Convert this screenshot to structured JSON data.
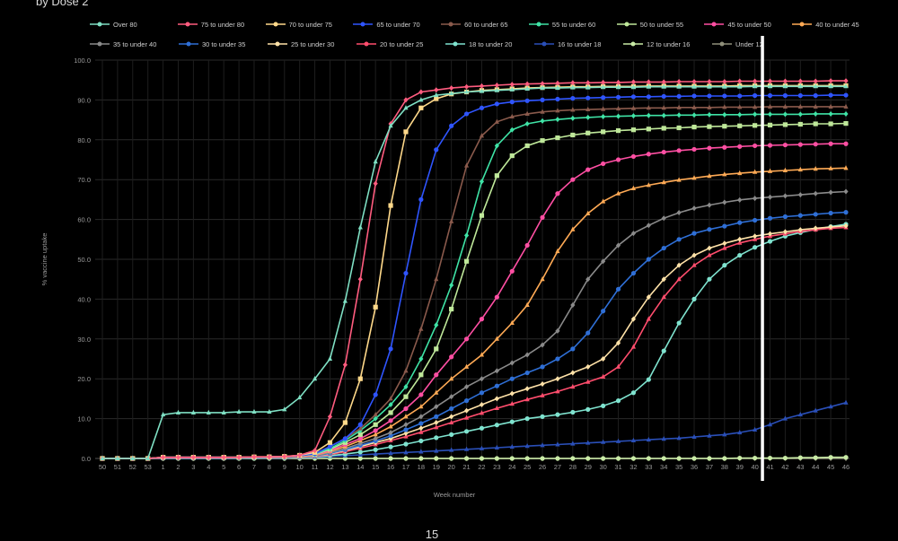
{
  "header": {
    "partial_text": "by Dose 2"
  },
  "page_number": "15",
  "chart_data": {
    "type": "line",
    "xlabel": "Week number",
    "ylabel": "% vaccine uptake",
    "ylim": [
      0,
      100
    ],
    "yticks": [
      "0.0",
      "10.0",
      "20.0",
      "30.0",
      "40.0",
      "50.0",
      "60.0",
      "70.0",
      "80.0",
      "90.0",
      "100.0"
    ],
    "categories": [
      "50",
      "51",
      "52",
      "53",
      "1",
      "2",
      "3",
      "4",
      "5",
      "6",
      "7",
      "8",
      "9",
      "10",
      "11",
      "12",
      "13",
      "14",
      "15",
      "16",
      "17",
      "18",
      "19",
      "20",
      "21",
      "22",
      "23",
      "24",
      "25",
      "26",
      "27",
      "28",
      "29",
      "30",
      "31",
      "32",
      "33",
      "34",
      "35",
      "36",
      "37",
      "38",
      "39",
      "40",
      "41",
      "42",
      "43",
      "44",
      "45",
      "46"
    ],
    "grid": true,
    "legend_position": "top",
    "vertical_marker_after": "40",
    "series": [
      {
        "name": "Over 80",
        "color": "#7fe0c4",
        "marker": "triangle",
        "values": [
          0,
          0,
          0,
          0,
          11,
          11.5,
          11.5,
          11.5,
          11.5,
          11.7,
          11.7,
          11.7,
          12.3,
          15.3,
          20,
          25,
          39.5,
          58,
          74.5,
          83.5,
          88,
          90,
          91.2,
          91.6,
          92,
          92.2,
          92.4,
          92.6,
          92.8,
          93,
          93,
          93.1,
          93.1,
          93.2,
          93.2,
          93.2,
          93.3,
          93.3,
          93.3,
          93.3,
          93.3,
          93.3,
          93.3,
          93.4,
          93.4,
          93.4,
          93.4,
          93.4,
          93.4,
          93.4
        ]
      },
      {
        "name": "75 to under 80",
        "color": "#ff5c7f",
        "marker": "diamond",
        "values": [
          0,
          0,
          0,
          0,
          0.3,
          0.3,
          0.3,
          0.3,
          0.3,
          0.3,
          0.4,
          0.4,
          0.5,
          0.8,
          2,
          10.5,
          23.5,
          45,
          69,
          84,
          90,
          92,
          92.5,
          93,
          93.3,
          93.5,
          93.7,
          93.9,
          94,
          94.1,
          94.2,
          94.3,
          94.3,
          94.4,
          94.4,
          94.5,
          94.5,
          94.5,
          94.6,
          94.6,
          94.6,
          94.6,
          94.7,
          94.7,
          94.7,
          94.7,
          94.7,
          94.7,
          94.8,
          94.8
        ]
      },
      {
        "name": "70 to under 75",
        "color": "#ffd98a",
        "marker": "square",
        "values": [
          0,
          0,
          0,
          0,
          0.3,
          0.3,
          0.3,
          0.3,
          0.3,
          0.3,
          0.4,
          0.4,
          0.5,
          0.8,
          1.5,
          4,
          9,
          20,
          38,
          63.5,
          82,
          88,
          90.3,
          91.5,
          92,
          92.4,
          92.6,
          92.8,
          93,
          93.1,
          93.2,
          93.3,
          93.3,
          93.4,
          93.4,
          93.4,
          93.5,
          93.5,
          93.5,
          93.5,
          93.5,
          93.5,
          93.6,
          93.6,
          93.6,
          93.6,
          93.6,
          93.6,
          93.6,
          93.6
        ]
      },
      {
        "name": "65 to under 70",
        "color": "#2f55ff",
        "marker": "circle",
        "values": [
          0,
          0,
          0,
          0,
          0.3,
          0.3,
          0.3,
          0.3,
          0.3,
          0.3,
          0.3,
          0.4,
          0.5,
          0.7,
          1.2,
          3,
          5,
          8.5,
          16,
          27.5,
          46.5,
          65,
          77.5,
          83.5,
          86.5,
          88,
          89,
          89.5,
          89.8,
          90,
          90.2,
          90.4,
          90.5,
          90.6,
          90.7,
          90.8,
          90.8,
          90.9,
          90.9,
          91,
          91,
          91,
          91,
          91.1,
          91.1,
          91.1,
          91.1,
          91.1,
          91.2,
          91.2
        ]
      },
      {
        "name": "60 to under 65",
        "color": "#8a5a4c",
        "marker": "triangle",
        "values": [
          0,
          0,
          0,
          0,
          0.3,
          0.3,
          0.3,
          0.3,
          0.3,
          0.3,
          0.3,
          0.4,
          0.5,
          0.7,
          1.2,
          3,
          5,
          7.5,
          11,
          15,
          22,
          32.5,
          45,
          59.5,
          73.5,
          81,
          84.5,
          85.8,
          86.5,
          87,
          87.3,
          87.5,
          87.6,
          87.7,
          87.8,
          87.9,
          88,
          88,
          88.1,
          88.1,
          88.1,
          88.2,
          88.2,
          88.2,
          88.3,
          88.3,
          88.3,
          88.3,
          88.3,
          88.3
        ]
      },
      {
        "name": "55 to under 60",
        "color": "#3fe3a6",
        "marker": "diamond",
        "values": [
          0,
          0,
          0,
          0,
          0.3,
          0.3,
          0.3,
          0.3,
          0.3,
          0.3,
          0.3,
          0.4,
          0.5,
          0.7,
          1.1,
          2.5,
          4.5,
          7,
          10,
          13.5,
          18,
          25,
          33.5,
          43.5,
          56,
          69.5,
          78.5,
          82.5,
          84,
          84.7,
          85.1,
          85.4,
          85.6,
          85.8,
          85.9,
          86,
          86.1,
          86.1,
          86.2,
          86.2,
          86.3,
          86.3,
          86.3,
          86.4,
          86.4,
          86.4,
          86.4,
          86.5,
          86.5,
          86.5
        ]
      },
      {
        "name": "50 to under 55",
        "color": "#bfe89a",
        "marker": "square",
        "values": [
          0,
          0,
          0,
          0,
          0.3,
          0.3,
          0.3,
          0.3,
          0.3,
          0.3,
          0.3,
          0.4,
          0.5,
          0.7,
          1,
          2.3,
          4,
          6,
          8.5,
          11.5,
          15.5,
          21,
          27.5,
          37.5,
          49.5,
          61,
          71,
          76,
          78.5,
          79.8,
          80.5,
          81.2,
          81.7,
          82,
          82.3,
          82.5,
          82.7,
          82.9,
          83,
          83.2,
          83.3,
          83.4,
          83.5,
          83.6,
          83.7,
          83.8,
          83.9,
          84,
          84,
          84.1
        ]
      },
      {
        "name": "45 to under 50",
        "color": "#ff4fa3",
        "marker": "circle",
        "values": [
          0,
          0,
          0,
          0,
          0.2,
          0.2,
          0.2,
          0.2,
          0.2,
          0.3,
          0.3,
          0.3,
          0.4,
          0.6,
          0.9,
          2,
          3.5,
          5,
          7,
          9.5,
          12.5,
          16,
          21,
          25.5,
          30,
          35,
          40.5,
          47,
          53.5,
          60.5,
          66.5,
          70,
          72.5,
          74,
          75,
          75.8,
          76.4,
          76.9,
          77.3,
          77.6,
          77.9,
          78.1,
          78.3,
          78.5,
          78.6,
          78.7,
          78.8,
          78.9,
          79,
          79
        ]
      },
      {
        "name": "40 to under 45",
        "color": "#ffaa55",
        "marker": "triangle",
        "values": [
          0,
          0,
          0,
          0,
          0.2,
          0.2,
          0.2,
          0.2,
          0.2,
          0.3,
          0.3,
          0.3,
          0.4,
          0.5,
          0.8,
          1.8,
          3,
          4.5,
          6,
          8,
          10.5,
          13,
          16.5,
          20,
          23,
          26,
          30,
          34,
          38.5,
          45,
          52,
          57.5,
          61.5,
          64.5,
          66.5,
          67.8,
          68.6,
          69.3,
          69.9,
          70.4,
          70.9,
          71.3,
          71.6,
          71.9,
          72.1,
          72.3,
          72.5,
          72.7,
          72.8,
          72.9
        ]
      },
      {
        "name": "35 to under 40",
        "color": "#8a8a8a",
        "marker": "diamond",
        "values": [
          0,
          0,
          0,
          0,
          0.2,
          0.2,
          0.2,
          0.2,
          0.2,
          0.2,
          0.3,
          0.3,
          0.3,
          0.5,
          0.7,
          1.5,
          2.5,
          3.8,
          5,
          6.5,
          8.5,
          10.5,
          13,
          15.5,
          18,
          20,
          22,
          24,
          26,
          28.5,
          32,
          38.5,
          45,
          49.5,
          53.5,
          56.5,
          58.5,
          60.3,
          61.7,
          62.8,
          63.6,
          64.3,
          64.9,
          65.3,
          65.6,
          65.9,
          66.2,
          66.5,
          66.8,
          67
        ]
      },
      {
        "name": "30 to under 35",
        "color": "#2f6fd6",
        "marker": "circle",
        "values": [
          0,
          0,
          0,
          0,
          0.2,
          0.2,
          0.2,
          0.2,
          0.2,
          0.2,
          0.3,
          0.3,
          0.3,
          0.5,
          0.6,
          1.3,
          2.2,
          3.3,
          4.4,
          5.7,
          7.2,
          8.8,
          10.5,
          12.5,
          14.5,
          16.5,
          18.2,
          20,
          21.5,
          23,
          25,
          27.5,
          31.5,
          37,
          42.5,
          46.5,
          50,
          52.8,
          55,
          56.5,
          57.5,
          58.3,
          59.2,
          59.8,
          60.3,
          60.7,
          61,
          61.3,
          61.6,
          61.8
        ]
      },
      {
        "name": "25 to under 30",
        "color": "#ffe2a8",
        "marker": "diamond",
        "values": [
          0,
          0,
          0,
          0,
          0.2,
          0.2,
          0.2,
          0.2,
          0.2,
          0.2,
          0.2,
          0.3,
          0.3,
          0.4,
          0.6,
          1.2,
          2,
          3,
          4,
          5,
          6.3,
          7.6,
          9,
          10.5,
          12,
          13.5,
          15,
          16.3,
          17.5,
          18.7,
          20,
          21.5,
          23,
          25,
          29,
          35,
          40.5,
          45,
          48.5,
          51,
          52.8,
          54,
          55,
          55.8,
          56.4,
          56.9,
          57.4,
          57.8,
          58.1,
          58.4
        ]
      },
      {
        "name": "20 to under 25",
        "color": "#ff4d6d",
        "marker": "triangle",
        "values": [
          0,
          0,
          0,
          0,
          0.2,
          0.2,
          0.2,
          0.2,
          0.2,
          0.2,
          0.2,
          0.3,
          0.3,
          0.4,
          0.5,
          1,
          1.7,
          2.6,
          3.5,
          4.5,
          5.5,
          6.6,
          7.8,
          9,
          10.2,
          11.4,
          12.6,
          13.7,
          14.8,
          15.8,
          16.8,
          18,
          19.2,
          20.5,
          23,
          28,
          35,
          40.5,
          45,
          48.5,
          51,
          52.8,
          54.1,
          55,
          55.8,
          56.4,
          57,
          57.4,
          57.8,
          58
        ]
      },
      {
        "name": "18 to under 20",
        "color": "#7fe3cf",
        "marker": "circle",
        "values": [
          0,
          0,
          0,
          0,
          0.1,
          0.1,
          0.1,
          0.1,
          0.1,
          0.1,
          0.1,
          0.2,
          0.2,
          0.3,
          0.4,
          0.7,
          1.1,
          1.6,
          2.2,
          2.9,
          3.6,
          4.4,
          5.2,
          6,
          6.8,
          7.6,
          8.4,
          9.2,
          10,
          10.5,
          11,
          11.6,
          12.3,
          13.2,
          14.5,
          16.5,
          19.8,
          27,
          34,
          40,
          45,
          48.5,
          51,
          53,
          54.5,
          55.8,
          56.7,
          57.5,
          58.2,
          58.8
        ]
      },
      {
        "name": "16 to under 18",
        "color": "#2a4fb8",
        "marker": "triangle",
        "values": [
          0,
          0,
          0,
          0,
          0,
          0,
          0,
          0,
          0,
          0,
          0.1,
          0.1,
          0.1,
          0.2,
          0.3,
          0.5,
          0.7,
          0.9,
          1.1,
          1.3,
          1.5,
          1.7,
          1.9,
          2.1,
          2.3,
          2.5,
          2.7,
          2.9,
          3.1,
          3.3,
          3.5,
          3.7,
          3.9,
          4.1,
          4.3,
          4.5,
          4.7,
          4.9,
          5.1,
          5.4,
          5.7,
          6,
          6.5,
          7.2,
          8.5,
          10,
          11,
          12,
          13,
          14
        ]
      },
      {
        "name": "12 to under 16",
        "color": "#c9eba6",
        "marker": "circle",
        "values": [
          0,
          0,
          0,
          0,
          0,
          0,
          0,
          0,
          0,
          0,
          0,
          0,
          0,
          0,
          0,
          0,
          0,
          0,
          0,
          0,
          0,
          0,
          0,
          0,
          0,
          0,
          0,
          0,
          0,
          0,
          0,
          0,
          0,
          0,
          0,
          0,
          0,
          0,
          0,
          0,
          0,
          0,
          0.1,
          0.1,
          0.1,
          0.1,
          0.2,
          0.2,
          0.3,
          0.3
        ]
      },
      {
        "name": "Under 12",
        "color": "#8f8f7a",
        "marker": "diamond",
        "values": [
          0,
          0,
          0,
          0,
          0,
          0,
          0,
          0,
          0,
          0,
          0,
          0,
          0,
          0,
          0,
          0,
          0,
          0,
          0,
          0,
          0,
          0,
          0,
          0,
          0,
          0,
          0,
          0,
          0,
          0,
          0,
          0,
          0,
          0,
          0,
          0,
          0,
          0,
          0,
          0,
          0,
          0,
          0,
          0,
          0,
          0,
          0,
          0,
          0,
          0
        ]
      }
    ]
  }
}
